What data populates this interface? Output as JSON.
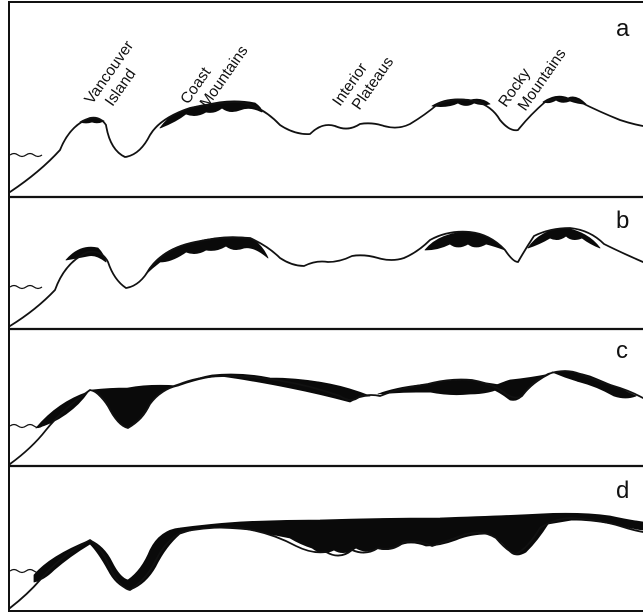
{
  "diagram": {
    "region_labels": {
      "vancouver_island": [
        "Vancouver",
        "Island"
      ],
      "coast_mountains": [
        "Coast",
        "Mountains"
      ],
      "interior_plateaus": [
        "Interior",
        "Plateaus"
      ],
      "rocky_mountains": [
        "Rocky",
        "Mountains"
      ]
    },
    "panels": [
      {
        "letter": "a",
        "ice_extent": "alpine glaciers on highest peaks"
      },
      {
        "letter": "b",
        "ice_extent": "expanded mountain glaciers"
      },
      {
        "letter": "c",
        "ice_extent": "valleys and plateaus filling with ice"
      },
      {
        "letter": "d",
        "ice_extent": "continuous ice sheet"
      }
    ],
    "colors": {
      "ice": "#0a0a0a",
      "terrain": "#111111",
      "background": "#ffffff"
    }
  }
}
